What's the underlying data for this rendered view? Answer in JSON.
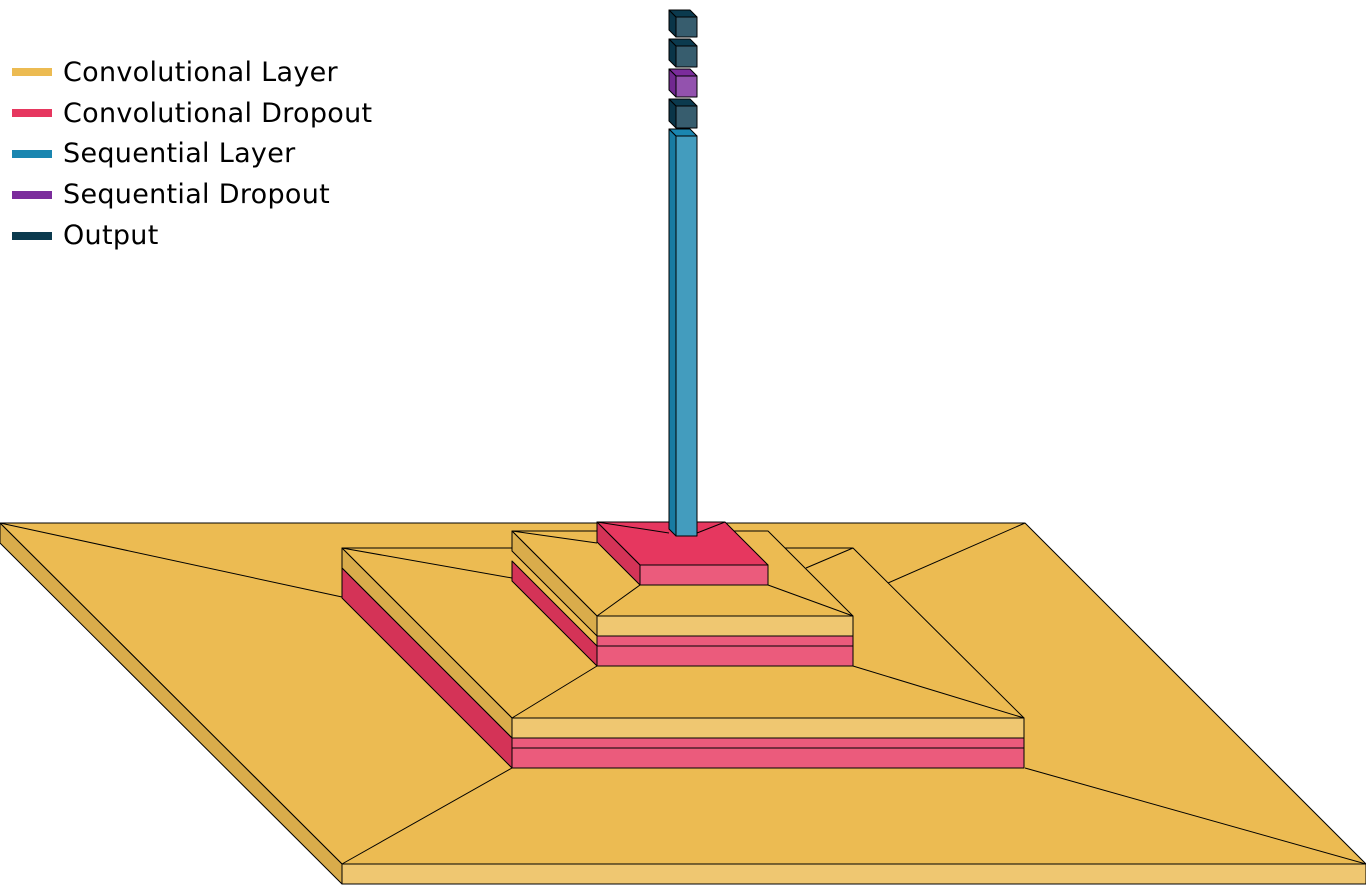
{
  "legend": {
    "items": [
      {
        "key": "conv",
        "label": "Convolutional Layer",
        "color": "#ECBB52"
      },
      {
        "key": "convdrop",
        "label": "Convolutional Dropout",
        "color": "#E6375F"
      },
      {
        "key": "seq",
        "label": "Sequential Layer",
        "color": "#1A86B0"
      },
      {
        "key": "seqdrop",
        "label": "Sequential Dropout",
        "color": "#7B2C9C"
      },
      {
        "key": "out",
        "label": "Output",
        "color": "#0B3A4E"
      }
    ]
  },
  "layers": [
    {
      "type": "conv"
    },
    {
      "type": "conv"
    },
    {
      "type": "convdrop"
    },
    {
      "type": "conv"
    },
    {
      "type": "convdrop"
    },
    {
      "type": "convdrop"
    },
    {
      "type": "seq"
    },
    {
      "type": "out"
    },
    {
      "type": "seqdrop"
    },
    {
      "type": "out"
    },
    {
      "type": "out"
    }
  ]
}
